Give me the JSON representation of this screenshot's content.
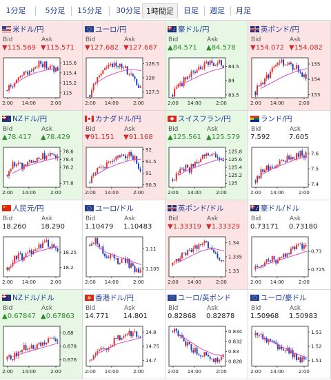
{
  "colors": {
    "up_bg": "#e6f7e3",
    "down_bg": "#fde4e4",
    "neutral_bg": "#ffffff",
    "up_text": "#2e8a2e",
    "down_text": "#cc2b2b",
    "candle_up": "#e03030",
    "candle_down": "#2040c0",
    "ma_line": "#d23cc8",
    "link": "#1f3d99"
  },
  "tabs": [
    {
      "label": "1分足"
    },
    {
      "label": "5分足"
    },
    {
      "label": "15分足"
    },
    {
      "label": "30分足"
    },
    {
      "label": "1時間足",
      "active": true
    },
    {
      "label": "日足"
    },
    {
      "label": "週足"
    },
    {
      "label": "月足"
    }
  ],
  "panels": [
    {
      "name": "米ドル/円",
      "flag": "us",
      "dir": "down",
      "bid": "▼115.569",
      "ask": "▼115.571",
      "bid_label": "Bid",
      "ask_label": "Ask",
      "chart_data": {
        "type": "candlestick",
        "x_ticks": [
          "2:00",
          "14:00",
          "2:00"
        ],
        "y_ticks": [
          "115.6",
          "115.4",
          "115.2",
          "115"
        ],
        "ylim": [
          114.9,
          115.7
        ],
        "trend": [
          115.05,
          115.15,
          115.25,
          115.4,
          115.45,
          115.5,
          115.6,
          115.55,
          115.5,
          115.45
        ],
        "ma": [
          115.15,
          115.3,
          115.4,
          115.46,
          115.5
        ]
      }
    },
    {
      "name": "ユーロ/円",
      "flag": "eu",
      "dir": "down",
      "bid": "▼127.682",
      "ask": "▼127.687",
      "bid_label": "Bid",
      "ask_label": "Ask",
      "chart_data": {
        "type": "candlestick",
        "x_ticks": [
          "2:00",
          "14:00",
          "2:00"
        ],
        "y_ticks": [
          "128.5",
          "128",
          "127.5"
        ],
        "ylim": [
          127.3,
          128.7
        ],
        "trend": [
          127.4,
          127.9,
          128.2,
          128.5,
          128.45,
          128.4,
          128.35,
          128.2,
          127.9,
          127.7
        ],
        "ma": [
          127.8,
          128.05,
          128.2,
          128.3,
          128.25
        ]
      }
    },
    {
      "name": "豪ドル/円",
      "flag": "au",
      "dir": "up",
      "bid": "▲84.571",
      "ask": "▲84.578",
      "bid_label": "Bid",
      "ask_label": "Ask",
      "chart_data": {
        "type": "candlestick",
        "x_ticks": [
          "2:00",
          "14:00",
          "2:00"
        ],
        "y_ticks": [
          "84.5",
          "84",
          "83.5"
        ],
        "ylim": [
          83.4,
          84.8
        ],
        "trend": [
          83.5,
          83.8,
          84.0,
          84.2,
          84.3,
          84.5,
          84.55,
          84.6,
          84.7,
          84.55
        ],
        "ma": [
          83.8,
          84.0,
          84.2,
          84.35,
          84.45
        ]
      }
    },
    {
      "name": "英ポンド/円",
      "flag": "uk",
      "dir": "down",
      "bid": "▼154.072",
      "ask": "▼154.082",
      "bid_label": "Bid",
      "ask_label": "Ask",
      "chart_data": {
        "type": "candlestick",
        "x_ticks": [
          "2:00",
          "14:00",
          "2:00"
        ],
        "y_ticks": [
          "155",
          "154",
          "153"
        ],
        "ylim": [
          152.8,
          155.4
        ],
        "trend": [
          153.2,
          153.8,
          154.1,
          154.6,
          155.0,
          155.1,
          155.0,
          154.8,
          154.5,
          154.1
        ],
        "ma": [
          153.4,
          153.8,
          154.2,
          154.5,
          154.7
        ]
      }
    },
    {
      "name": "NZドル/円",
      "flag": "nz",
      "dir": "up",
      "bid": "▲78.417",
      "ask": "▲78.429",
      "bid_label": "Bid",
      "ask_label": "Ask",
      "chart_data": {
        "type": "candlestick",
        "x_ticks": [
          "2:00",
          "14:00",
          "2:00"
        ],
        "y_ticks": [
          "78.6",
          "78.4",
          "78.2",
          "77.8"
        ],
        "ylim": [
          77.7,
          78.7
        ],
        "trend": [
          78.0,
          78.25,
          78.3,
          78.2,
          78.35,
          78.4,
          78.45,
          78.5,
          78.6,
          78.45
        ],
        "ma": [
          78.05,
          78.2,
          78.3,
          78.38,
          78.45
        ]
      }
    },
    {
      "name": "カナダドル/円",
      "flag": "ca",
      "dir": "down",
      "bid": "▼91.151",
      "ask": "▼91.168",
      "bid_label": "Bid",
      "ask_label": "Ask",
      "chart_data": {
        "type": "candlestick",
        "x_ticks": [
          "2:00",
          "14:00",
          "2:00"
        ],
        "y_ticks": [
          "92",
          "91.5",
          "91",
          "90.5"
        ],
        "ylim": [
          90.4,
          92.1
        ],
        "trend": [
          90.6,
          91.0,
          91.3,
          91.4,
          91.5,
          91.6,
          91.7,
          91.8,
          91.6,
          91.2
        ],
        "ma": [
          90.9,
          91.2,
          91.4,
          91.55,
          91.6
        ]
      }
    },
    {
      "name": "スイスフラン/円",
      "flag": "ch",
      "dir": "up",
      "bid": "▲125.561",
      "ask": "▲125.579",
      "bid_label": "Bid",
      "ask_label": "Ask",
      "chart_data": {
        "type": "candlestick",
        "x_ticks": [
          "2:00",
          "14:00",
          "2:00"
        ],
        "y_ticks": [
          "125.8",
          "125.6",
          "125.4",
          "125.2",
          "125"
        ],
        "ylim": [
          124.9,
          125.9
        ],
        "trend": [
          125.1,
          125.3,
          125.4,
          125.35,
          125.5,
          125.6,
          125.7,
          125.8,
          125.7,
          125.55
        ],
        "ma": [
          125.2,
          125.35,
          125.45,
          125.55,
          125.62
        ]
      }
    },
    {
      "name": "ランド/円",
      "flag": "za",
      "dir": "neutral",
      "bid": "7.592",
      "ask": "7.605",
      "bid_label": "Bid",
      "ask_label": "Ask",
      "chart_data": {
        "type": "candlestick",
        "x_ticks": [
          "2:00",
          "14:00",
          "2:00"
        ],
        "y_ticks": [
          "7.6",
          "7.5",
          "7.4"
        ],
        "ylim": [
          7.38,
          7.64
        ],
        "trend": [
          7.42,
          7.48,
          7.5,
          7.49,
          7.52,
          7.55,
          7.57,
          7.58,
          7.6,
          7.59
        ],
        "ma": [
          7.46,
          7.5,
          7.53,
          7.56,
          7.58
        ]
      }
    },
    {
      "name": "人民元/円",
      "flag": "cn",
      "dir": "neutral",
      "bid": "18.260",
      "ask": "18.290",
      "bid_label": "Bid",
      "ask_label": "Ask",
      "chart_data": {
        "type": "candlestick",
        "x_ticks": [
          "2:00",
          "14:00",
          "2:00"
        ],
        "y_ticks": [
          "18.25",
          "18.2"
        ],
        "ylim": [
          18.17,
          18.3
        ],
        "trend": [
          18.2,
          18.22,
          18.24,
          18.23,
          18.25,
          18.26,
          18.27,
          18.28,
          18.27,
          18.26
        ],
        "ma": [
          18.21,
          18.23,
          18.25,
          18.26,
          18.27
        ]
      }
    },
    {
      "name": "ユーロ/ドル",
      "flag": "eu",
      "dir": "neutral",
      "bid": "1.10479",
      "ask": "1.10483",
      "bid_label": "Bid",
      "ask_label": "Ask",
      "chart_data": {
        "type": "candlestick",
        "x_ticks": [
          "2:00",
          "14:00",
          "2:00"
        ],
        "y_ticks": [
          "1.11",
          "1.105"
        ],
        "ylim": [
          1.103,
          1.113
        ],
        "trend": [
          1.111,
          1.112,
          1.11,
          1.108,
          1.109,
          1.107,
          1.108,
          1.106,
          1.105,
          1.104
        ],
        "ma": [
          1.111,
          1.109,
          1.108,
          1.107,
          1.106
        ]
      }
    },
    {
      "name": "英ポンド/ドル",
      "flag": "uk",
      "dir": "down",
      "bid": "▼1.33319",
      "ask": "▼1.33329",
      "bid_label": "Bid",
      "ask_label": "Ask",
      "chart_data": {
        "type": "candlestick",
        "x_ticks": [
          "2:00",
          "14:00",
          "2:00"
        ],
        "y_ticks": [
          "1.34",
          "1.335",
          "1.33"
        ],
        "ylim": [
          1.328,
          1.342
        ],
        "trend": [
          1.332,
          1.334,
          1.336,
          1.337,
          1.338,
          1.339,
          1.34,
          1.337,
          1.335,
          1.333
        ],
        "ma": [
          1.333,
          1.335,
          1.337,
          1.338,
          1.337
        ]
      }
    },
    {
      "name": "豪ドル/ドル",
      "flag": "au",
      "dir": "neutral",
      "bid": "0.73171",
      "ask": "0.73180",
      "bid_label": "Bid",
      "ask_label": "Ask",
      "chart_data": {
        "type": "candlestick",
        "x_ticks": [
          "2:00",
          "14:00",
          "2:00"
        ],
        "y_ticks": [
          "0.73",
          "0.725"
        ],
        "ylim": [
          0.723,
          0.734
        ],
        "trend": [
          0.725,
          0.726,
          0.727,
          0.728,
          0.727,
          0.729,
          0.73,
          0.731,
          0.732,
          0.731
        ],
        "ma": [
          0.726,
          0.727,
          0.728,
          0.729,
          0.73
        ]
      }
    },
    {
      "name": "NZドル/ドル",
      "flag": "nz",
      "dir": "up",
      "bid": "▲0.67847",
      "ask": "▲0.67863",
      "bid_label": "Bid",
      "ask_label": "Ask",
      "chart_data": {
        "type": "candlestick",
        "x_ticks": [
          "2:00",
          "14:00",
          "2:00"
        ],
        "y_ticks": [
          "0.68",
          "0.678",
          "0.676"
        ],
        "ylim": [
          0.675,
          0.681
        ],
        "trend": [
          0.676,
          0.6765,
          0.677,
          0.678,
          0.6775,
          0.678,
          0.6785,
          0.679,
          0.6795,
          0.6785
        ],
        "ma": [
          0.6765,
          0.677,
          0.6775,
          0.678,
          0.6785
        ]
      }
    },
    {
      "name": "香港ドル/円",
      "flag": "hk",
      "dir": "neutral",
      "bid": "14.771",
      "ask": "14.801",
      "bid_label": "Bid",
      "ask_label": "Ask",
      "chart_data": {
        "type": "candlestick",
        "x_ticks": [
          "2:00",
          "14:00",
          "2:00"
        ],
        "y_ticks": [
          "14.8",
          "14.75",
          "14.7"
        ],
        "ylim": [
          14.68,
          14.82
        ],
        "trend": [
          14.7,
          14.72,
          14.74,
          14.75,
          14.76,
          14.78,
          14.79,
          14.8,
          14.79,
          14.77
        ],
        "ma": [
          14.72,
          14.74,
          14.76,
          14.77,
          14.78
        ]
      }
    },
    {
      "name": "ユーロ/英ポンド",
      "flag": "eu",
      "dir": "neutral",
      "bid": "0.82868",
      "ask": "0.82878",
      "bid_label": "Bid",
      "ask_label": "Ask",
      "chart_data": {
        "type": "candlestick",
        "x_ticks": [
          "2:00",
          "14:00",
          "2:00"
        ],
        "y_ticks": [
          "0.834",
          "0.832",
          "0.83",
          "0.828"
        ],
        "ylim": [
          0.827,
          0.835
        ],
        "trend": [
          0.834,
          0.8335,
          0.832,
          0.831,
          0.83,
          0.8295,
          0.829,
          0.8285,
          0.8285,
          0.8287
        ],
        "ma": [
          0.8335,
          0.832,
          0.8305,
          0.8295,
          0.829
        ]
      }
    },
    {
      "name": "ユーロ/豪ドル",
      "flag": "eu",
      "dir": "neutral",
      "bid": "1.50968",
      "ask": "1.50983",
      "bid_label": "Bid",
      "ask_label": "Ask",
      "chart_data": {
        "type": "candlestick",
        "x_ticks": [
          "2:00",
          "14:00",
          "2:00"
        ],
        "y_ticks": [
          "1.53",
          "1.52",
          "1.51"
        ],
        "ylim": [
          1.506,
          1.534
        ],
        "trend": [
          1.528,
          1.527,
          1.525,
          1.522,
          1.52,
          1.518,
          1.516,
          1.513,
          1.511,
          1.51
        ],
        "ma": [
          1.527,
          1.523,
          1.519,
          1.515,
          1.512
        ]
      }
    }
  ]
}
